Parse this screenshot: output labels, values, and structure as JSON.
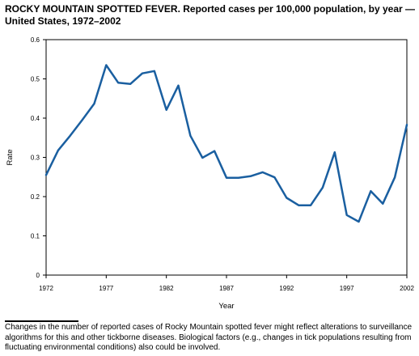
{
  "title": "ROCKY MOUNTAIN SPOTTED FEVER.",
  "subtitle": "Reported cases per 100,000 population, by year — United States, 1972–2002",
  "footnote": "Changes in the number of reported cases of Rocky Mountain spotted fever might reflect alterations to surveillance algorithms for this and other tickborne diseases. Biological factors (e.g., changes in tick populations resulting from fluctuating environmental conditions) also could be involved.",
  "colors": {
    "line": "#1a5fa0",
    "axis": "#000000"
  },
  "chart_data": {
    "type": "line",
    "title": "ROCKY MOUNTAIN SPOTTED FEVER. Reported cases per 100,000 population, by year — United States, 1972–2002",
    "xlabel": "Year",
    "ylabel": "Rate",
    "xlim": [
      1972,
      2002
    ],
    "ylim": [
      0,
      0.6
    ],
    "xticks": [
      "1972",
      "1977",
      "1982",
      "1987",
      "1992",
      "1997",
      "2002"
    ],
    "yticks": [
      "0",
      "0.1",
      "0.2",
      "0.3",
      "0.4",
      "0.5",
      "0.6"
    ],
    "grid": false,
    "series": [
      {
        "x": [
          1972,
          1973,
          1974,
          1975,
          1976,
          1977,
          1978,
          1979,
          1980,
          1981,
          1982,
          1983,
          1984,
          1985,
          1986,
          1987,
          1988,
          1989,
          1990,
          1991,
          1992,
          1993,
          1994,
          1995,
          1996,
          1997,
          1998,
          1999,
          2000,
          2001,
          2002
        ],
        "values": [
          0.255,
          0.318,
          0.355,
          0.395,
          0.437,
          0.535,
          0.49,
          0.487,
          0.514,
          0.52,
          0.421,
          0.483,
          0.355,
          0.299,
          0.316,
          0.248,
          0.248,
          0.252,
          0.262,
          0.249,
          0.197,
          0.178,
          0.178,
          0.223,
          0.313,
          0.153,
          0.136,
          0.214,
          0.182,
          0.249,
          0.383
        ]
      }
    ]
  }
}
